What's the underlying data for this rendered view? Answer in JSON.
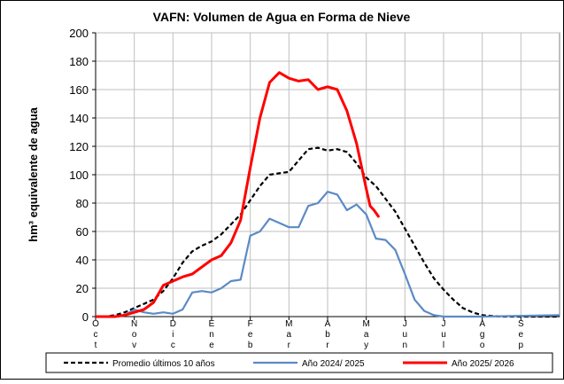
{
  "chart_data": {
    "type": "line",
    "title": "VAFN: Volumen de Agua en Forma de Nieve",
    "y_label": "hm³ equivalente de agua",
    "xlim": [
      0,
      12
    ],
    "xticks": [
      {
        "value": 0,
        "label": "Oct"
      },
      {
        "value": 1,
        "label": "Nov"
      },
      {
        "value": 2,
        "label": "Dic"
      },
      {
        "value": 3,
        "label": "Ene"
      },
      {
        "value": 4,
        "label": "Feb"
      },
      {
        "value": 5,
        "label": "Mar"
      },
      {
        "value": 6,
        "label": "Abr"
      },
      {
        "value": 7,
        "label": "May"
      },
      {
        "value": 8,
        "label": "Jun"
      },
      {
        "value": 9,
        "label": "Jul"
      },
      {
        "value": 10,
        "label": "Ago"
      },
      {
        "value": 11,
        "label": "Sep"
      }
    ],
    "ylim": [
      0,
      200
    ],
    "yticks": [
      0,
      20,
      40,
      60,
      80,
      100,
      120,
      140,
      160,
      180,
      200
    ],
    "grid": true,
    "legend": "bottom",
    "series": [
      {
        "name": "Promedio últimos 10 años",
        "color": "#000000",
        "dash": true,
        "x": [
          0,
          0.25,
          0.5,
          0.75,
          1,
          1.25,
          1.5,
          1.75,
          2,
          2.25,
          2.5,
          2.75,
          3,
          3.25,
          3.5,
          3.75,
          4,
          4.25,
          4.5,
          4.75,
          5,
          5.25,
          5.5,
          5.75,
          6,
          6.25,
          6.5,
          6.75,
          7,
          7.25,
          7.5,
          7.75,
          8,
          8.25,
          8.5,
          8.75,
          9,
          9.25,
          9.5,
          9.75,
          10,
          10.5,
          11,
          12
        ],
        "values": [
          0,
          0,
          1,
          3,
          6,
          9,
          12,
          18,
          27,
          38,
          46,
          50,
          53,
          58,
          65,
          72,
          82,
          92,
          100,
          101,
          102,
          110,
          118,
          119,
          117,
          118,
          116,
          108,
          98,
          92,
          83,
          74,
          62,
          50,
          38,
          27,
          19,
          12,
          6,
          3,
          1,
          0,
          0,
          0
        ]
      },
      {
        "name": "Año  2024/ 2025",
        "color": "#5b8ac6",
        "dash": false,
        "x": [
          0,
          0.5,
          0.75,
          1,
          1.25,
          1.5,
          1.75,
          2,
          2.25,
          2.5,
          2.75,
          3,
          3.25,
          3.5,
          3.75,
          4,
          4.25,
          4.5,
          4.75,
          5,
          5.25,
          5.5,
          5.75,
          6,
          6.25,
          6.5,
          6.75,
          7,
          7.25,
          7.5,
          7.75,
          8,
          8.25,
          8.5,
          8.75,
          9,
          10,
          12
        ],
        "values": [
          0,
          0,
          1,
          5,
          3,
          2,
          3,
          2,
          5,
          17,
          18,
          17,
          20,
          25,
          26,
          57,
          60,
          69,
          66,
          63,
          63,
          78,
          80,
          88,
          86,
          75,
          79,
          72,
          55,
          54,
          47,
          30,
          12,
          4,
          1,
          0,
          0,
          1
        ]
      },
      {
        "name": "Año  2025/ 2026",
        "color": "#ff0000",
        "dash": false,
        "x": [
          0,
          0.5,
          0.75,
          1,
          1.25,
          1.5,
          1.75,
          2,
          2.25,
          2.5,
          2.75,
          3,
          3.25,
          3.5,
          3.75,
          4,
          4.25,
          4.5,
          4.75,
          5,
          5.25,
          5.5,
          5.75,
          6,
          6.25,
          6.5,
          6.75,
          7,
          7.1,
          7.2,
          7.33
        ],
        "values": [
          0,
          0,
          1,
          3,
          5,
          10,
          22,
          25,
          28,
          30,
          35,
          40,
          43,
          52,
          68,
          105,
          140,
          165,
          172,
          168,
          166,
          167,
          160,
          162,
          160,
          145,
          122,
          90,
          78,
          75,
          70
        ]
      }
    ]
  }
}
